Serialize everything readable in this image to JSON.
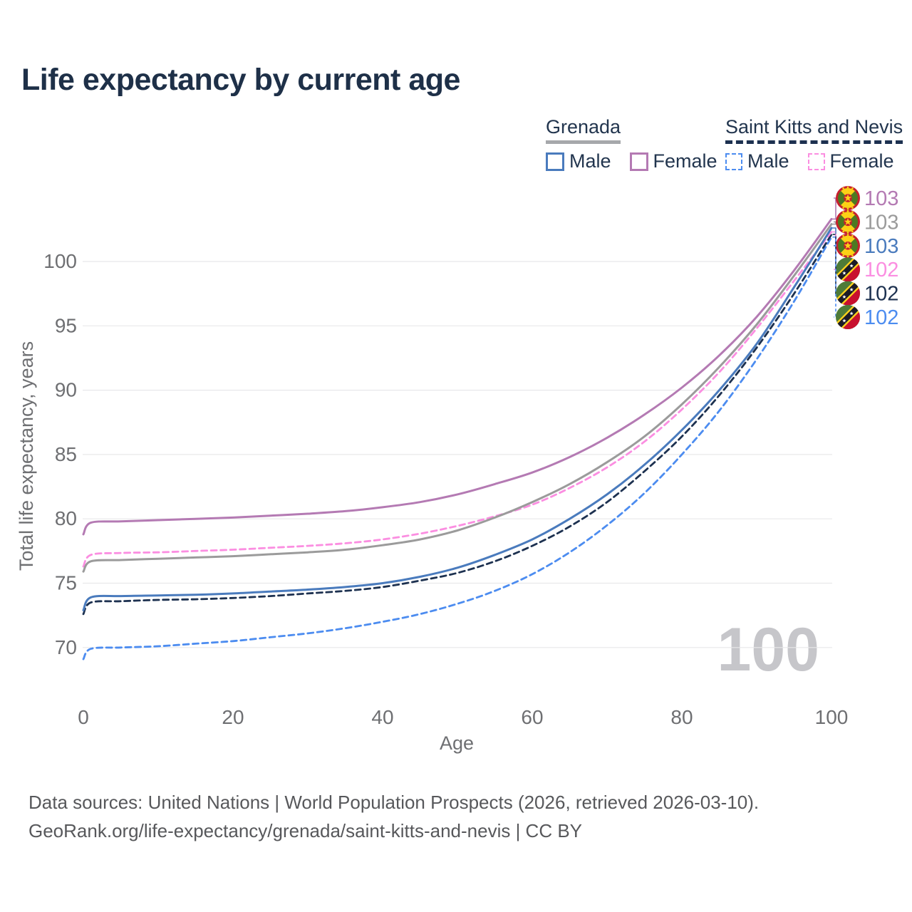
{
  "title": "Life expectancy by current age",
  "legend": {
    "groups": [
      {
        "country": "Grenada",
        "line_style": "solid",
        "underline_color": "#a6a8ab",
        "items": [
          {
            "label": "Male",
            "color": "#4a7bbd",
            "dashed": false
          },
          {
            "label": "Female",
            "color": "#b47ab3",
            "dashed": false
          }
        ]
      },
      {
        "country": "Saint Kitts and Nevis",
        "line_style": "dashed",
        "underline_color": "#1d3150",
        "items": [
          {
            "label": "Male",
            "color": "#4c8cf0",
            "dashed": true
          },
          {
            "label": "Female",
            "color": "#fb8ee1",
            "dashed": true
          }
        ]
      }
    ]
  },
  "watermark": "100",
  "chart_data": {
    "type": "line",
    "title": "Life expectancy by current age",
    "xlabel": "Age",
    "ylabel": "Total life expectancy, years",
    "xlim": [
      0,
      100
    ],
    "ylim": [
      67,
      104
    ],
    "xticks": [
      0,
      20,
      40,
      60,
      80,
      100
    ],
    "yticks": [
      70,
      75,
      80,
      85,
      90,
      95,
      100
    ],
    "grid": "horizontal",
    "legend_position": "top-right",
    "x": [
      0,
      1,
      5,
      10,
      15,
      20,
      25,
      30,
      35,
      40,
      45,
      50,
      55,
      60,
      65,
      70,
      75,
      80,
      85,
      90,
      95,
      100
    ],
    "series": [
      {
        "id": "grenada-female",
        "name": "Grenada Female",
        "country": "Grenada",
        "sex": "Female",
        "color": "#b47ab3",
        "dashed": false,
        "flag": "GD",
        "end_label": "103",
        "values": [
          78.8,
          79.7,
          79.8,
          79.9,
          80.0,
          80.1,
          80.25,
          80.4,
          80.6,
          80.9,
          81.3,
          81.9,
          82.7,
          83.6,
          84.8,
          86.3,
          88.1,
          90.2,
          92.7,
          95.7,
          99.3,
          103.3
        ]
      },
      {
        "id": "grenada-both",
        "name": "Grenada (both sexes)",
        "country": "Grenada",
        "sex": "Both",
        "color": "#9b9b9b",
        "dashed": false,
        "flag": "GD",
        "end_label": "103",
        "values": [
          75.9,
          76.7,
          76.8,
          76.9,
          77.0,
          77.1,
          77.25,
          77.4,
          77.6,
          77.95,
          78.4,
          79.1,
          80.1,
          81.3,
          82.7,
          84.4,
          86.4,
          88.9,
          91.8,
          95.1,
          98.9,
          102.9
        ]
      },
      {
        "id": "grenada-male",
        "name": "Grenada Male",
        "country": "Grenada",
        "sex": "Male",
        "color": "#4a7bbd",
        "dashed": false,
        "flag": "GD",
        "end_label": "103",
        "values": [
          72.9,
          73.9,
          74.0,
          74.05,
          74.1,
          74.2,
          74.35,
          74.5,
          74.7,
          75.0,
          75.5,
          76.2,
          77.2,
          78.4,
          80.0,
          81.9,
          84.2,
          86.9,
          90.0,
          93.6,
          98.0,
          102.6
        ]
      },
      {
        "id": "saint-kitts-and-nevis-female",
        "name": "Saint Kitts and Nevis Female",
        "country": "Saint Kitts and Nevis",
        "sex": "Female",
        "color": "#fb8ee1",
        "dashed": true,
        "flag": "KN",
        "end_label": "102",
        "values": [
          76.3,
          77.2,
          77.35,
          77.4,
          77.5,
          77.6,
          77.75,
          77.9,
          78.1,
          78.4,
          78.85,
          79.45,
          80.2,
          81.1,
          82.4,
          84.0,
          86.0,
          88.5,
          91.4,
          94.8,
          98.5,
          102.3
        ]
      },
      {
        "id": "saint-kitts-and-nevis-both",
        "name": "Saint Kitts and Nevis (both sexes)",
        "country": "Saint Kitts and Nevis",
        "sex": "Both",
        "color": "#1d3150",
        "dashed": true,
        "flag": "KN",
        "end_label": "102",
        "values": [
          72.6,
          73.5,
          73.6,
          73.7,
          73.75,
          73.85,
          74.0,
          74.2,
          74.4,
          74.7,
          75.2,
          75.8,
          76.7,
          77.9,
          79.4,
          81.3,
          83.7,
          86.4,
          89.6,
          93.3,
          97.5,
          102.1
        ]
      },
      {
        "id": "saint-kitts-and-nevis-male",
        "name": "Saint Kitts and Nevis Male",
        "country": "Saint Kitts and Nevis",
        "sex": "Male",
        "color": "#4c8cf0",
        "dashed": true,
        "flag": "KN",
        "end_label": "102",
        "values": [
          69.1,
          69.9,
          70.0,
          70.1,
          70.3,
          70.5,
          70.8,
          71.1,
          71.5,
          72.0,
          72.6,
          73.4,
          74.4,
          75.7,
          77.4,
          79.5,
          82.0,
          85.0,
          88.4,
          92.4,
          96.9,
          101.9
        ]
      }
    ]
  },
  "footer": {
    "line1": "Data sources: United Nations | World Population Prospects (2026, retrieved 2026-03-10).",
    "line2": "GeoRank.org/life-expectancy/grenada/saint-kitts-and-nevis | CC BY"
  }
}
